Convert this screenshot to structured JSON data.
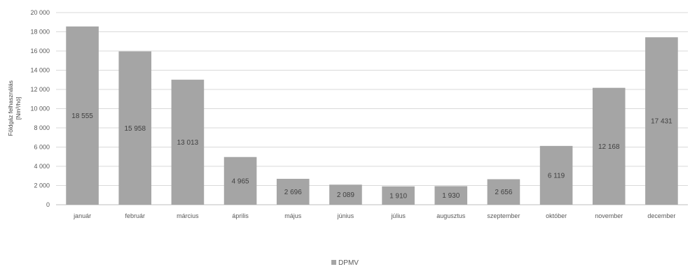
{
  "chart_data": {
    "type": "bar",
    "categories": [
      "január",
      "február",
      "március",
      "április",
      "május",
      "június",
      "július",
      "augusztus",
      "szeptember",
      "október",
      "november",
      "december"
    ],
    "series": [
      {
        "name": "DPMV",
        "values": [
          18555,
          15958,
          13013,
          4965,
          2696,
          2089,
          1910,
          1930,
          2656,
          6119,
          12168,
          17431
        ],
        "color": "#a5a5a5"
      }
    ],
    "data_labels": [
      "18 555",
      "15 958",
      "13 013",
      "4 965",
      "2 696",
      "2 089",
      "1 910",
      "1 930",
      "2 656",
      "6 119",
      "12 168",
      "17 431"
    ],
    "y_ticks": [
      "0",
      "2 000",
      "4 000",
      "6 000",
      "8 000",
      "10 000",
      "12 000",
      "14 000",
      "16 000",
      "18 000",
      "20 000"
    ],
    "ylim": [
      0,
      20000
    ],
    "ylabel_line1": "Földgáz felhasználás",
    "ylabel_line2": "[Nm³/hó]",
    "xlabel": "",
    "title": "",
    "grid": true,
    "legend_position": "bottom",
    "colors": {
      "bar": "#a5a5a5",
      "grid": "#d9d9d9",
      "text": "#595959"
    }
  },
  "legend": {
    "label": "DPMV"
  }
}
